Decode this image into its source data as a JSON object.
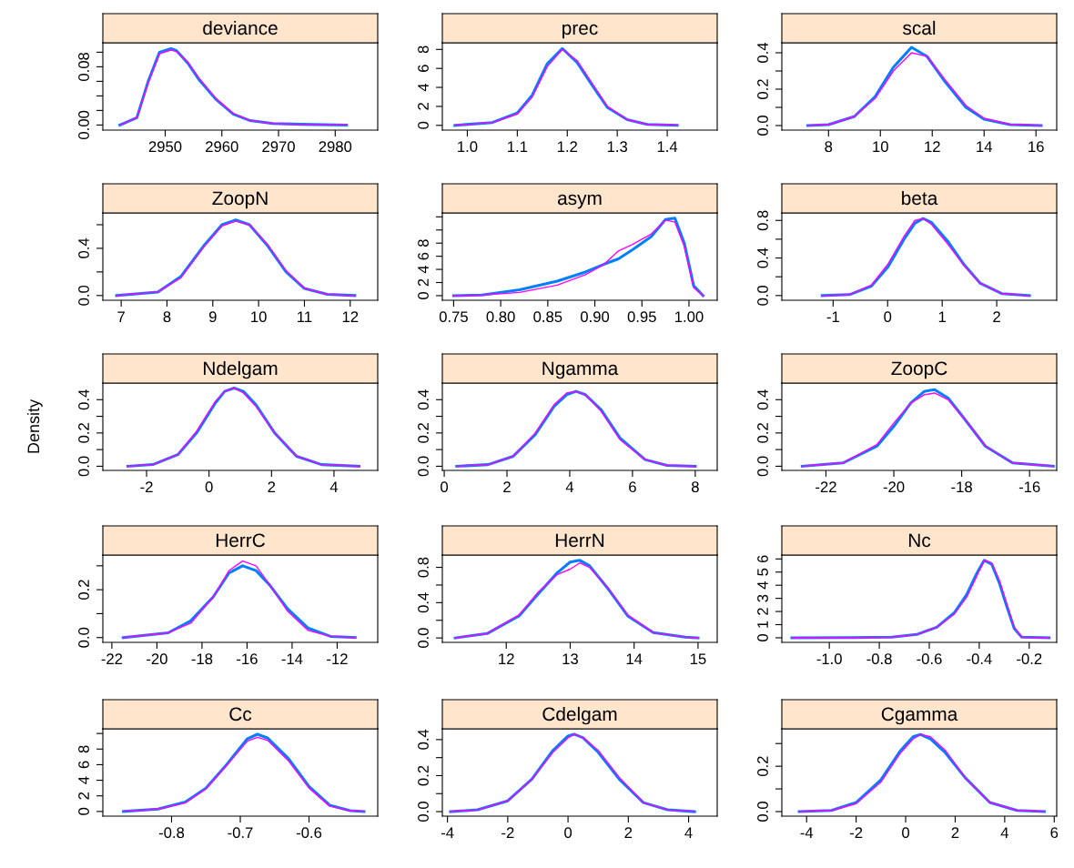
{
  "chart_data": [
    {
      "type": "line",
      "title": "deviance",
      "x": [
        2942,
        2945,
        2947,
        2949,
        2951,
        2952,
        2954,
        2956,
        2959,
        2962,
        2965,
        2969,
        2974,
        2982
      ],
      "series": [
        {
          "color": "#0080ff",
          "values": [
            0,
            0.01,
            0.06,
            0.1,
            0.105,
            0.102,
            0.085,
            0.062,
            0.035,
            0.015,
            0.006,
            0.002,
            0.001,
            0
          ]
        },
        {
          "color": "#ff00ff",
          "values": [
            0,
            0.01,
            0.058,
            0.098,
            0.103,
            0.101,
            0.086,
            0.064,
            0.036,
            0.016,
            0.006,
            0.002,
            0.001,
            0
          ]
        }
      ],
      "xlim": [
        2939,
        2987.5
      ],
      "xticks": [
        2950,
        2960,
        2970,
        2980
      ],
      "ylim": [
        -0.007,
        0.113
      ],
      "yticks": [
        {
          "value": 0,
          "label": "0.00"
        },
        {
          "value": 0.02,
          "label": null
        },
        {
          "value": 0.04,
          "label": null
        },
        {
          "value": 0.06,
          "label": null
        },
        {
          "value": 0.08,
          "label": "0.08"
        },
        {
          "value": 0.1,
          "label": null
        }
      ]
    },
    {
      "type": "line",
      "title": "prec",
      "x": [
        0.975,
        1.05,
        1.1,
        1.13,
        1.16,
        1.19,
        1.22,
        1.25,
        1.28,
        1.32,
        1.36,
        1.42
      ],
      "series": [
        {
          "color": "#0080ff",
          "values": [
            0,
            0.3,
            1.3,
            3.2,
            6.5,
            8.1,
            6.6,
            4.2,
            1.9,
            0.6,
            0.1,
            0
          ]
        },
        {
          "color": "#ff00ff",
          "values": [
            0,
            0.3,
            1.2,
            3.0,
            6.2,
            8.0,
            6.8,
            4.4,
            2.0,
            0.6,
            0.1,
            0
          ]
        }
      ],
      "xlim": [
        0.95,
        1.5
      ],
      "xticks": [
        {
          "value": 1.0,
          "label": "1.0"
        },
        1.1,
        1.2,
        1.3,
        1.4
      ],
      "ylim": [
        -0.5,
        8.7
      ],
      "yticks": [
        0,
        2,
        4,
        6,
        8
      ]
    },
    {
      "type": "line",
      "title": "scal",
      "x": [
        7.2,
        8,
        9,
        9.8,
        10.5,
        11.2,
        11.8,
        12.5,
        13.3,
        14,
        15,
        16.2
      ],
      "series": [
        {
          "color": "#0080ff",
          "values": [
            0,
            0.005,
            0.05,
            0.16,
            0.32,
            0.43,
            0.38,
            0.24,
            0.1,
            0.035,
            0.005,
            0
          ]
        },
        {
          "color": "#ff00ff",
          "values": [
            0,
            0.005,
            0.05,
            0.15,
            0.3,
            0.4,
            0.38,
            0.25,
            0.11,
            0.04,
            0.006,
            0
          ]
        }
      ],
      "xlim": [
        6.2,
        16.8
      ],
      "xticks": [
        8,
        10,
        12,
        14,
        16
      ],
      "ylim": [
        -0.025,
        0.455
      ],
      "yticks": [
        {
          "value": 0,
          "label": "0.0"
        },
        {
          "value": 0.1,
          "label": null
        },
        {
          "value": 0.2,
          "label": "0.2"
        },
        {
          "value": 0.3,
          "label": null
        },
        {
          "value": 0.4,
          "label": "0.4"
        }
      ]
    },
    {
      "type": "line",
      "title": "ZoopN",
      "x": [
        6.9,
        7.8,
        8.3,
        8.8,
        9.2,
        9.5,
        9.8,
        10.2,
        10.6,
        11,
        11.5,
        12.1
      ],
      "series": [
        {
          "color": "#0080ff",
          "values": [
            0,
            0.03,
            0.16,
            0.42,
            0.6,
            0.64,
            0.6,
            0.42,
            0.2,
            0.06,
            0.01,
            0
          ]
        },
        {
          "color": "#ff00ff",
          "values": [
            0,
            0.03,
            0.15,
            0.41,
            0.59,
            0.63,
            0.6,
            0.43,
            0.21,
            0.06,
            0.01,
            0
          ]
        }
      ],
      "xlim": [
        6.6,
        12.6
      ],
      "xticks": [
        7,
        8,
        9,
        10,
        11,
        12
      ],
      "ylim": [
        -0.04,
        0.7
      ],
      "yticks": [
        {
          "value": 0,
          "label": "0.0"
        },
        {
          "value": 0.2,
          "label": null
        },
        {
          "value": 0.4,
          "label": "0.4"
        },
        {
          "value": 0.6,
          "label": null
        }
      ]
    },
    {
      "type": "line",
      "title": "asym",
      "x": [
        0.75,
        0.78,
        0.82,
        0.86,
        0.89,
        0.91,
        0.925,
        0.94,
        0.96,
        0.975,
        0.985,
        0.995,
        1.005,
        1.015
      ],
      "series": [
        {
          "color": "#0080ff",
          "values": [
            0,
            0.1,
            0.9,
            2.2,
            3.6,
            4.8,
            5.6,
            7.0,
            9.0,
            11.6,
            11.8,
            8,
            1.5,
            0
          ]
        },
        {
          "color": "#ff00ff",
          "values": [
            0,
            0.1,
            0.5,
            1.6,
            3.2,
            4.8,
            6.8,
            7.8,
            9.4,
            11.5,
            11.2,
            7.5,
            1.2,
            0
          ]
        }
      ],
      "xlim": [
        0.738,
        1.03
      ],
      "xticks": [
        0.75,
        {
          "value": 0.8,
          "label": "0.80"
        },
        0.85,
        {
          "value": 0.9,
          "label": "0.90"
        },
        0.95,
        {
          "value": 1.0,
          "label": "1.00"
        }
      ],
      "ylim": [
        -0.7,
        12.6
      ],
      "yticks": [
        0,
        2,
        4,
        6,
        8,
        {
          "value": 10,
          "label": null
        },
        {
          "value": 12,
          "label": null
        }
      ]
    },
    {
      "type": "line",
      "title": "beta",
      "x": [
        -1.2,
        -0.7,
        -0.3,
        0,
        0.3,
        0.5,
        0.65,
        0.8,
        1.1,
        1.4,
        1.7,
        2.1,
        2.6
      ],
      "series": [
        {
          "color": "#0080ff",
          "values": [
            0,
            0.01,
            0.1,
            0.3,
            0.6,
            0.77,
            0.82,
            0.78,
            0.58,
            0.33,
            0.13,
            0.02,
            0
          ]
        },
        {
          "color": "#ff00ff",
          "values": [
            0,
            0.01,
            0.11,
            0.33,
            0.63,
            0.8,
            0.82,
            0.76,
            0.55,
            0.32,
            0.13,
            0.02,
            0
          ]
        }
      ],
      "xlim": [
        -1.94,
        3.1
      ],
      "xticks": [
        -1,
        0,
        1,
        2
      ],
      "ylim": [
        -0.05,
        0.88
      ],
      "yticks": [
        {
          "value": 0,
          "label": "0.0"
        },
        {
          "value": 0.2,
          "label": null
        },
        {
          "value": 0.4,
          "label": "0.4"
        },
        {
          "value": 0.6,
          "label": null
        },
        {
          "value": 0.8,
          "label": "0.8"
        }
      ]
    },
    {
      "type": "line",
      "title": "Ndelgam",
      "ylabel": "Density",
      "x": [
        -2.6,
        -1.8,
        -1.0,
        -0.4,
        0.2,
        0.5,
        0.8,
        1.1,
        1.5,
        2.1,
        2.8,
        3.6,
        4.8
      ],
      "series": [
        {
          "color": "#0080ff",
          "values": [
            0,
            0.01,
            0.07,
            0.2,
            0.38,
            0.45,
            0.47,
            0.45,
            0.37,
            0.2,
            0.06,
            0.01,
            0
          ]
        },
        {
          "color": "#ff00ff",
          "values": [
            0,
            0.01,
            0.07,
            0.21,
            0.39,
            0.45,
            0.47,
            0.44,
            0.36,
            0.2,
            0.06,
            0.01,
            0
          ]
        }
      ],
      "xlim": [
        -3.4,
        5.4
      ],
      "xticks": [
        -2,
        0,
        2,
        4
      ],
      "ylim": [
        -0.025,
        0.5
      ],
      "yticks": [
        {
          "value": 0,
          "label": "0.0"
        },
        {
          "value": 0.1,
          "label": null
        },
        {
          "value": 0.2,
          "label": "0.2"
        },
        {
          "value": 0.3,
          "label": null
        },
        {
          "value": 0.4,
          "label": "0.4"
        }
      ]
    },
    {
      "type": "line",
      "title": "Ngamma",
      "x": [
        0.4,
        1.4,
        2.2,
        2.9,
        3.5,
        3.9,
        4.2,
        4.5,
        5,
        5.6,
        6.4,
        7.1,
        8.0
      ],
      "series": [
        {
          "color": "#0080ff",
          "values": [
            0,
            0.01,
            0.06,
            0.19,
            0.36,
            0.43,
            0.45,
            0.43,
            0.34,
            0.17,
            0.04,
            0.005,
            0
          ]
        },
        {
          "color": "#ff00ff",
          "values": [
            0,
            0.01,
            0.06,
            0.2,
            0.37,
            0.44,
            0.45,
            0.43,
            0.33,
            0.16,
            0.04,
            0.005,
            0
          ]
        }
      ],
      "xlim": [
        -0.06,
        8.7
      ],
      "xticks": [
        0,
        2,
        4,
        6,
        8
      ],
      "ylim": [
        -0.025,
        0.5
      ],
      "yticks": [
        {
          "value": 0,
          "label": "0.0"
        },
        {
          "value": 0.1,
          "label": null
        },
        {
          "value": 0.2,
          "label": "0.2"
        },
        {
          "value": 0.3,
          "label": null
        },
        {
          "value": 0.4,
          "label": "0.4"
        }
      ]
    },
    {
      "type": "line",
      "title": "ZoopC",
      "x": [
        -22.7,
        -21.5,
        -20.5,
        -20,
        -19.5,
        -19.1,
        -18.8,
        -18.4,
        -17.9,
        -17.3,
        -16.5,
        -15.3
      ],
      "series": [
        {
          "color": "#0080ff",
          "values": [
            0,
            0.02,
            0.12,
            0.24,
            0.38,
            0.45,
            0.46,
            0.41,
            0.28,
            0.12,
            0.02,
            0
          ]
        },
        {
          "color": "#ff00ff",
          "values": [
            0,
            0.02,
            0.13,
            0.26,
            0.38,
            0.43,
            0.44,
            0.4,
            0.28,
            0.12,
            0.02,
            0
          ]
        }
      ],
      "xlim": [
        -23.3,
        -15.2
      ],
      "xticks": [
        -22,
        -20,
        -18,
        -16
      ],
      "ylim": [
        -0.025,
        0.5
      ],
      "yticks": [
        {
          "value": 0,
          "label": "0.0"
        },
        {
          "value": 0.1,
          "label": null
        },
        {
          "value": 0.2,
          "label": "0.2"
        },
        {
          "value": 0.3,
          "label": null
        },
        {
          "value": 0.4,
          "label": "0.4"
        }
      ]
    },
    {
      "type": "line",
      "title": "HerrC",
      "x": [
        -21.5,
        -19.5,
        -18.5,
        -17.5,
        -16.8,
        -16.2,
        -15.6,
        -15,
        -14.2,
        -13.3,
        -12.3,
        -11.2
      ],
      "series": [
        {
          "color": "#0080ff",
          "values": [
            0,
            0.02,
            0.07,
            0.17,
            0.27,
            0.3,
            0.28,
            0.22,
            0.12,
            0.04,
            0.005,
            0
          ]
        },
        {
          "color": "#ff00ff",
          "values": [
            0,
            0.02,
            0.06,
            0.17,
            0.28,
            0.32,
            0.3,
            0.22,
            0.11,
            0.03,
            0.005,
            0
          ]
        }
      ],
      "xlim": [
        -22.4,
        -10.2
      ],
      "xticks": [
        -22,
        -20,
        -18,
        -16,
        -14,
        -12
      ],
      "ylim": [
        -0.02,
        0.345
      ],
      "yticks": [
        {
          "value": 0,
          "label": "0.0"
        },
        {
          "value": 0.1,
          "label": null
        },
        {
          "value": 0.2,
          "label": "0.2"
        },
        {
          "value": 0.3,
          "label": null
        }
      ]
    },
    {
      "type": "line",
      "title": "HerrN",
      "x": [
        11.2,
        11.7,
        12.2,
        12.5,
        12.8,
        13.0,
        13.15,
        13.3,
        13.6,
        13.9,
        14.3,
        14.8,
        15.0
      ],
      "series": [
        {
          "color": "#0080ff",
          "values": [
            0,
            0.05,
            0.25,
            0.5,
            0.74,
            0.86,
            0.88,
            0.82,
            0.55,
            0.25,
            0.06,
            0.01,
            0
          ]
        },
        {
          "color": "#ff00ff",
          "values": [
            0,
            0.05,
            0.26,
            0.52,
            0.72,
            0.78,
            0.85,
            0.8,
            0.56,
            0.26,
            0.06,
            0.01,
            0
          ]
        }
      ],
      "xlim": [
        11.0,
        15.3
      ],
      "xticks": [
        12,
        13,
        14,
        15
      ],
      "ylim": [
        -0.05,
        0.94
      ],
      "yticks": [
        {
          "value": 0,
          "label": "0.0"
        },
        {
          "value": 0.2,
          "label": null
        },
        {
          "value": 0.4,
          "label": "0.4"
        },
        {
          "value": 0.6,
          "label": null
        },
        {
          "value": 0.8,
          "label": "0.8"
        }
      ]
    },
    {
      "type": "line",
      "title": "Nc",
      "x": [
        -1.15,
        -0.9,
        -0.75,
        -0.65,
        -0.57,
        -0.5,
        -0.45,
        -0.41,
        -0.38,
        -0.35,
        -0.32,
        -0.29,
        -0.26,
        -0.23,
        -0.12
      ],
      "series": [
        {
          "color": "#0080ff",
          "values": [
            0,
            0.01,
            0.05,
            0.25,
            0.8,
            1.9,
            3.3,
            4.9,
            5.9,
            5.6,
            4.2,
            2.4,
            0.7,
            0.05,
            0
          ]
        },
        {
          "color": "#ff00ff",
          "values": [
            0,
            0.01,
            0.05,
            0.25,
            0.8,
            1.8,
            3.1,
            4.7,
            5.9,
            5.7,
            4.4,
            2.6,
            0.8,
            0.05,
            0
          ]
        }
      ],
      "xlim": [
        -1.19,
        -0.09
      ],
      "xticks": [
        {
          "value": -1.0,
          "label": "-1.0"
        },
        -0.8,
        -0.6,
        -0.4,
        -0.2
      ],
      "ylim": [
        -0.35,
        6.3
      ],
      "yticks": [
        0,
        1,
        2,
        3,
        4,
        5,
        6
      ]
    },
    {
      "type": "line",
      "title": "Cc",
      "x": [
        -0.87,
        -0.82,
        -0.78,
        -0.75,
        -0.72,
        -0.69,
        -0.675,
        -0.66,
        -0.63,
        -0.6,
        -0.57,
        -0.54,
        -0.52
      ],
      "series": [
        {
          "color": "#0080ff",
          "values": [
            0,
            0.3,
            1.2,
            3.0,
            6.0,
            9.3,
            9.9,
            9.4,
            6.8,
            3.2,
            0.8,
            0.1,
            0
          ]
        },
        {
          "color": "#ff00ff",
          "values": [
            0,
            0.3,
            1.1,
            2.9,
            5.9,
            9.0,
            9.5,
            9.1,
            6.5,
            3.0,
            0.7,
            0.1,
            0
          ]
        }
      ],
      "xlim": [
        -0.9,
        -0.5
      ],
      "xticks": [
        -0.8,
        -0.7,
        -0.6
      ],
      "ylim": [
        -0.6,
        10.6
      ],
      "yticks": [
        0,
        2,
        4,
        6,
        8,
        {
          "value": 10,
          "label": null
        }
      ]
    },
    {
      "type": "line",
      "title": "Cdelgam",
      "x": [
        -3.9,
        -3,
        -2,
        -1.2,
        -0.5,
        0,
        0.2,
        0.5,
        1,
        1.7,
        2.5,
        3.3,
        4.2
      ],
      "series": [
        {
          "color": "#0080ff",
          "values": [
            0,
            0.01,
            0.06,
            0.18,
            0.34,
            0.42,
            0.43,
            0.41,
            0.33,
            0.18,
            0.05,
            0.01,
            0
          ]
        },
        {
          "color": "#ff00ff",
          "values": [
            0,
            0.01,
            0.06,
            0.18,
            0.33,
            0.41,
            0.43,
            0.41,
            0.34,
            0.19,
            0.05,
            0.01,
            0
          ]
        }
      ],
      "xlim": [
        -4.17,
        4.95
      ],
      "xticks": [
        -4,
        -2,
        0,
        2,
        4
      ],
      "ylim": [
        -0.025,
        0.46
      ],
      "yticks": [
        {
          "value": 0,
          "label": "0.0"
        },
        {
          "value": 0.1,
          "label": null
        },
        {
          "value": 0.2,
          "label": "0.2"
        },
        {
          "value": 0.3,
          "label": null
        },
        {
          "value": 0.4,
          "label": "0.4"
        }
      ]
    },
    {
      "type": "line",
      "title": "Cgamma",
      "x": [
        -4.3,
        -3,
        -2,
        -1,
        -0.2,
        0.3,
        0.6,
        1,
        1.6,
        2.4,
        3.4,
        4.5,
        5.6
      ],
      "series": [
        {
          "color": "#0080ff",
          "values": [
            0,
            0.005,
            0.04,
            0.14,
            0.27,
            0.33,
            0.34,
            0.32,
            0.26,
            0.15,
            0.04,
            0.005,
            0
          ]
        },
        {
          "color": "#ff00ff",
          "values": [
            0,
            0.005,
            0.035,
            0.13,
            0.26,
            0.32,
            0.34,
            0.33,
            0.27,
            0.15,
            0.04,
            0.005,
            0
          ]
        }
      ],
      "xlim": [
        -5.0,
        6.1
      ],
      "xticks": [
        -4,
        -2,
        0,
        2,
        4,
        6
      ],
      "ylim": [
        -0.02,
        0.365
      ],
      "yticks": [
        {
          "value": 0,
          "label": "0.0"
        },
        {
          "value": 0.1,
          "label": null
        },
        {
          "value": 0.2,
          "label": "0.2"
        },
        {
          "value": 0.3,
          "label": null
        }
      ]
    }
  ]
}
